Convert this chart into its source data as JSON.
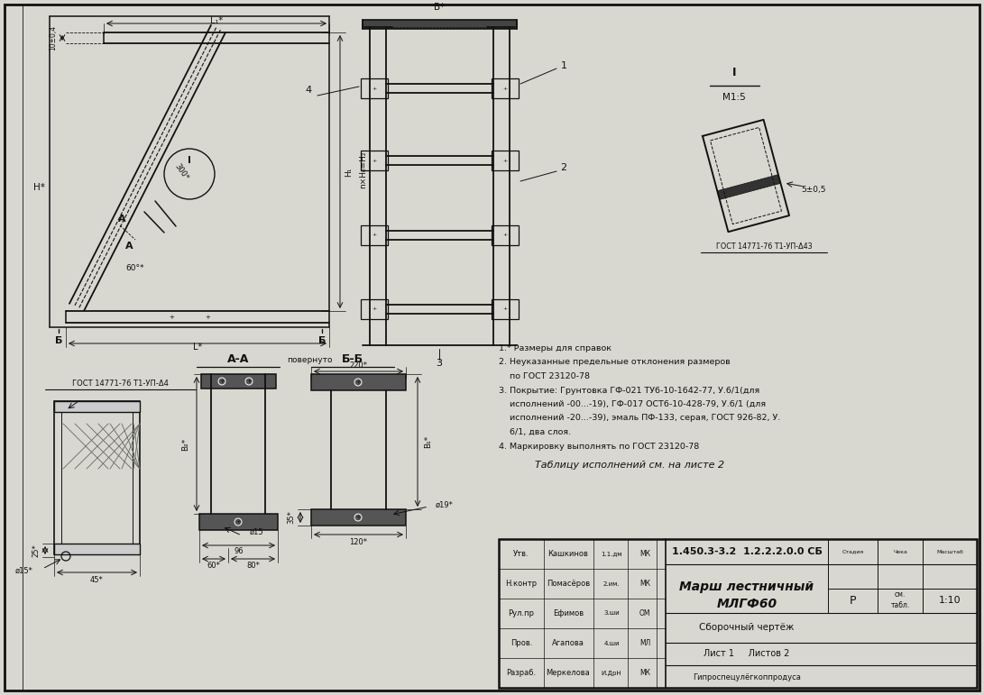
{
  "bg_color": "#d8d8d0",
  "line_color": "#111111",
  "title1": "Марш лестничный",
  "title2": "МЛГФ60",
  "subtitle": "Сборочный чертёж",
  "doc_num": "1.450.3-3.2  1.2.2.2.0.0 СБ",
  "sheet": "Лист 1   Листов 2",
  "scale": "1:10",
  "company": "Гипроспецулёгкоппродуса",
  "notes": [
    "1.* Размеры для справок",
    "2. Неуказанные предельные отклонения размеров",
    "    по ГОСТ 23120-78",
    "3. Покрытие: Грунтовка ГФ-021 ТУ6-10-1642-77, У.6/1(для",
    "    исполнений -00...-19), ГФ-017 ОСТ6-10-428-79, У.6/1 (для",
    "    исполнений -20...-39), эмаль ПФ-133, серая, ГОСТ 926-82, У.",
    "    6/1, два слоя.",
    "4. Маркировку выполнять по ГОСТ 23120-78"
  ],
  "table_note": "Таблицу исполнений см. на листе 2",
  "persons": [
    [
      "Утв.",
      "Кашкинов",
      "1.1.дм",
      "МК"
    ],
    [
      "Н.контр",
      "Помасёров",
      "2.им.",
      "МК"
    ],
    [
      "Рул.пр",
      "Ефимов",
      "3.ши",
      "ОМ"
    ],
    [
      "Пров.",
      "Агапова",
      "4.ши",
      "МЛ"
    ],
    [
      "Разраб.",
      "Меркелова",
      "И.ДрН",
      "МК"
    ]
  ],
  "gost_anchor": "ГОСТ 14771-76 Т1-УП-Δ4",
  "gost_step": "ГОСТ 14771-76 Т1-УП-Δ43"
}
